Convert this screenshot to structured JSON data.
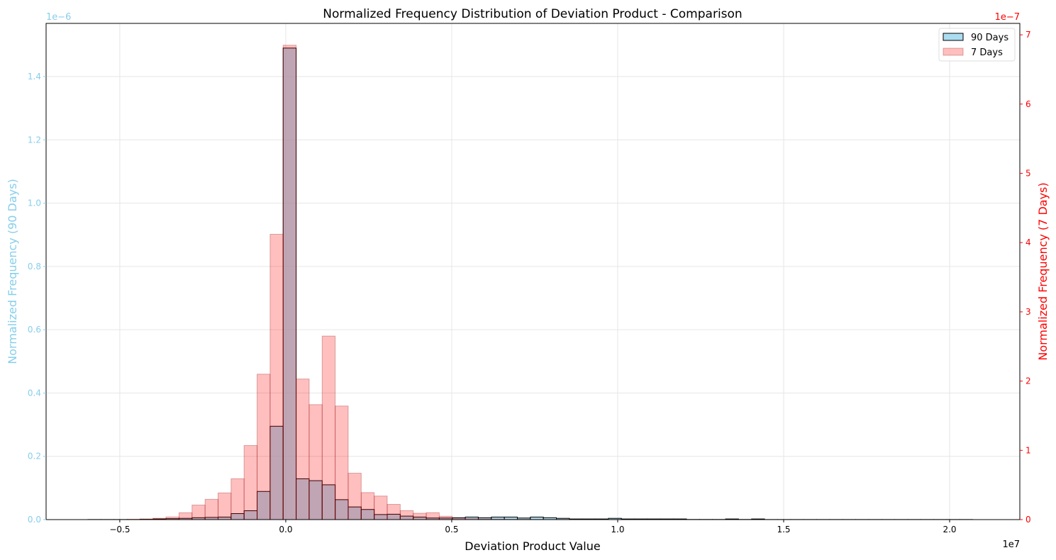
{
  "chart_data": {
    "type": "bar",
    "title": "Normalized Frequency Distribution of Deviation Product - Comparison",
    "xlabel": "Deviation Product Value",
    "xlabel_offset": "1e7",
    "ylabel_left": "Normalized Frequency (90 Days)",
    "ylabel_left_offset": "1e−6",
    "ylabel_right": "Normalized Frequency (7 Days)",
    "ylabel_right_offset": "1e−7",
    "x_unit_scale": "1e7",
    "bin_start": -0.5959,
    "bin_width": 0.0392,
    "xlim": [
      -0.722,
      2.2115
    ],
    "ylim_left": [
      0,
      1.568
    ],
    "ylim_right": [
      0,
      7.165
    ],
    "grid": true,
    "legend_position": "top-right",
    "x_ticks": [
      "−0.5",
      "0.0",
      "0.5",
      "1.0",
      "1.5",
      "2.0"
    ],
    "x_tick_values": [
      -0.5,
      0,
      0.5,
      1.0,
      1.5,
      2.0
    ],
    "y_left_ticks": [
      "0.0",
      "0.2",
      "0.4",
      "0.6",
      "0.8",
      "1.0",
      "1.2",
      "1.4"
    ],
    "y_left_tick_values": [
      0,
      0.2,
      0.4,
      0.6,
      0.8,
      1.0,
      1.2,
      1.4
    ],
    "y_right_ticks": [
      "0",
      "1",
      "2",
      "3",
      "4",
      "5",
      "6",
      "7"
    ],
    "y_right_tick_values": [
      0,
      1,
      2,
      3,
      4,
      5,
      6,
      7
    ],
    "series": [
      {
        "name": "90 Days",
        "axis": "left",
        "color": "#87CEEB",
        "edge": "#000000",
        "values": [
          0.0003,
          0.0003,
          0.0003,
          0.0003,
          0.001,
          0.002,
          0.003,
          0.004,
          0.006,
          0.007,
          0.008,
          0.019,
          0.028,
          0.089,
          0.295,
          1.49,
          0.129,
          0.123,
          0.11,
          0.063,
          0.04,
          0.032,
          0.016,
          0.017,
          0.011,
          0.008,
          0.005,
          0.005,
          0.006,
          0.008,
          0.006,
          0.008,
          0.008,
          0.005,
          0.008,
          0.006,
          0.004,
          0.002,
          0.002,
          0.002,
          0.004,
          0.002,
          0.002,
          0.002,
          0.002,
          0.002,
          0.0005,
          0.0005,
          0.0005,
          0.002,
          0.0005,
          0.002,
          0.0003,
          0.0003,
          0.0003,
          0.0003,
          0.0003,
          0.0003,
          0.0003,
          0.0003,
          0.0003,
          0.0003,
          0.0003,
          0.0003,
          0.0003,
          0.0003,
          0.0003,
          0.0003
        ]
      },
      {
        "name": "7 Days",
        "axis": "right",
        "color": "#FF0000",
        "edge": "#8B0000",
        "values": [
          0,
          0,
          0,
          0.005,
          0.01,
          0.02,
          0.038,
          0.099,
          0.21,
          0.293,
          0.385,
          0.59,
          1.07,
          2.1,
          4.12,
          6.85,
          2.03,
          1.66,
          2.65,
          1.64,
          0.67,
          0.39,
          0.34,
          0.22,
          0.13,
          0.092,
          0.1,
          0.048,
          0.02,
          0.015,
          0.01,
          0.008,
          0.006,
          0.005,
          0.004,
          0.003,
          0.003,
          0.002,
          0.002,
          0.002,
          0.002,
          0.001,
          0,
          0,
          0,
          0,
          0,
          0,
          0,
          0,
          0,
          0,
          0,
          0,
          0,
          0,
          0,
          0,
          0,
          0,
          0,
          0,
          0,
          0,
          0,
          0,
          0,
          0
        ]
      }
    ],
    "axis_colors": {
      "left": "#87CEEB",
      "right": "#FF0000"
    }
  }
}
